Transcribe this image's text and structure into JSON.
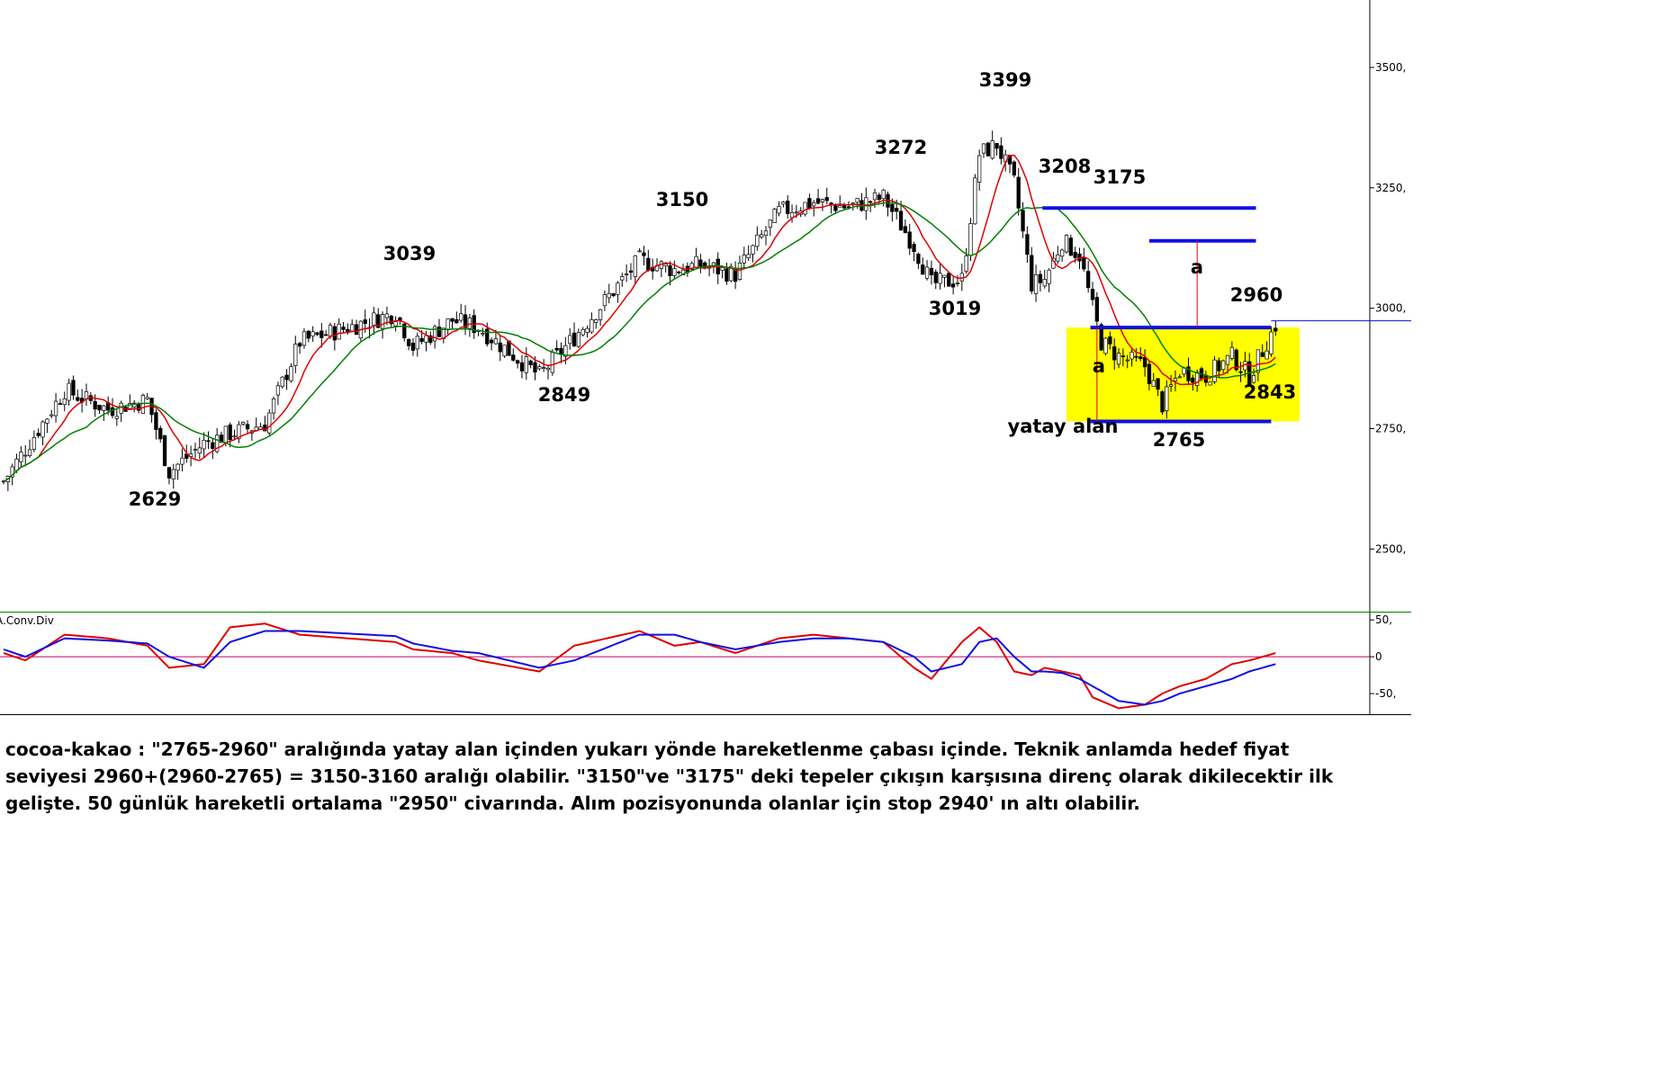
{
  "chart_data": [
    {
      "type": "candlestick",
      "ylim": [
        2370,
        3640
      ],
      "y_ticks": [
        2500,
        2750,
        3000,
        3250,
        3500
      ],
      "y_tick_labels": [
        "2500,",
        "2750,",
        "3000,",
        "3250,",
        "3500,"
      ],
      "colors": {
        "up": "#ffffff",
        "down": "#000000",
        "ma_fast": "#e00000",
        "ma_slow": "#008000",
        "resistance": "#1010e0",
        "box": "#ffff00",
        "last_price_line": "#1010e0"
      },
      "anchors": [
        {
          "i": 0,
          "v": 2640
        },
        {
          "i": 14,
          "v": 2830
        },
        {
          "i": 24,
          "v": 2790
        },
        {
          "i": 33,
          "v": 2810
        },
        {
          "i": 38,
          "v": 2660
        },
        {
          "i": 46,
          "v": 2720
        },
        {
          "i": 52,
          "v": 2740
        },
        {
          "i": 60,
          "v": 2760
        },
        {
          "i": 68,
          "v": 2930
        },
        {
          "i": 90,
          "v": 2990
        },
        {
          "i": 94,
          "v": 2920
        },
        {
          "i": 103,
          "v": 2975
        },
        {
          "i": 109,
          "v": 2960
        },
        {
          "i": 123,
          "v": 2860
        },
        {
          "i": 131,
          "v": 2940
        },
        {
          "i": 146,
          "v": 3100
        },
        {
          "i": 154,
          "v": 3080
        },
        {
          "i": 160,
          "v": 3090
        },
        {
          "i": 168,
          "v": 3070
        },
        {
          "i": 178,
          "v": 3200
        },
        {
          "i": 186,
          "v": 3220
        },
        {
          "i": 194,
          "v": 3210
        },
        {
          "i": 202,
          "v": 3230
        },
        {
          "i": 209,
          "v": 3130
        },
        {
          "i": 213,
          "v": 3050
        },
        {
          "i": 220,
          "v": 3060
        },
        {
          "i": 224,
          "v": 3320
        },
        {
          "i": 228,
          "v": 3340
        },
        {
          "i": 232,
          "v": 3260
        },
        {
          "i": 236,
          "v": 3050
        },
        {
          "i": 239,
          "v": 3060
        },
        {
          "i": 243,
          "v": 3140
        },
        {
          "i": 247,
          "v": 3110
        },
        {
          "i": 250,
          "v": 3000
        },
        {
          "i": 252,
          "v": 2930
        },
        {
          "i": 256,
          "v": 2900
        },
        {
          "i": 262,
          "v": 2880
        },
        {
          "i": 266,
          "v": 2800
        },
        {
          "i": 270,
          "v": 2870
        },
        {
          "i": 276,
          "v": 2860
        },
        {
          "i": 282,
          "v": 2900
        },
        {
          "i": 286,
          "v": 2860
        },
        {
          "i": 290,
          "v": 2930
        },
        {
          "i": 292,
          "v": 2965
        }
      ],
      "bars": 293,
      "overbar_labels": [
        {
          "text": "2629",
          "value": 2629,
          "bar": 36
        },
        {
          "text": "3039",
          "value": 3039,
          "bar": 92
        },
        {
          "text": "2849",
          "value": 2849,
          "bar": 127
        },
        {
          "text": "3150",
          "value": 3150,
          "bar": 153
        },
        {
          "text": "3272",
          "value": 3272,
          "bar": 203
        },
        {
          "text": "3399",
          "value": 3399,
          "bar": 226
        },
        {
          "text": "3019",
          "value": 3019,
          "bar": 215
        },
        {
          "text": "3208",
          "value": 3208,
          "bar": 239
        },
        {
          "text": "3175",
          "value": 3175,
          "bar": 251
        },
        {
          "text": "2960",
          "value": 2960,
          "bar": 284
        },
        {
          "text": "2843",
          "value": 2843,
          "bar": 287
        },
        {
          "text": "2765",
          "value": 2765,
          "bar": 271
        }
      ],
      "annotations": {
        "box_label": "yatay alan",
        "measure_label_left": "a",
        "measure_label_right": "a"
      },
      "horizontal_box": {
        "low": 2765,
        "high": 2960
      },
      "resistance_levels": [
        3208,
        3140
      ]
    },
    {
      "type": "line",
      "title": "A.Conv.Div",
      "ylim": [
        -78,
        60
      ],
      "y_ticks": [
        50,
        0,
        -50
      ],
      "y_tick_labels": [
        "50,",
        "0",
        "-50,"
      ],
      "series": [
        {
          "color": "#e00000",
          "anchors": [
            [
              0,
              5
            ],
            [
              5,
              -5
            ],
            [
              14,
              30
            ],
            [
              24,
              25
            ],
            [
              33,
              15
            ],
            [
              38,
              -15
            ],
            [
              46,
              -10
            ],
            [
              52,
              40
            ],
            [
              60,
              45
            ],
            [
              68,
              30
            ],
            [
              90,
              20
            ],
            [
              94,
              10
            ],
            [
              103,
              5
            ],
            [
              109,
              -5
            ],
            [
              123,
              -20
            ],
            [
              131,
              15
            ],
            [
              146,
              35
            ],
            [
              154,
              15
            ],
            [
              160,
              20
            ],
            [
              168,
              5
            ],
            [
              178,
              25
            ],
            [
              186,
              30
            ],
            [
              194,
              25
            ],
            [
              202,
              20
            ],
            [
              209,
              -15
            ],
            [
              213,
              -30
            ],
            [
              220,
              20
            ],
            [
              224,
              40
            ],
            [
              228,
              20
            ],
            [
              232,
              -20
            ],
            [
              236,
              -25
            ],
            [
              239,
              -15
            ],
            [
              243,
              -20
            ],
            [
              247,
              -25
            ],
            [
              250,
              -55
            ],
            [
              256,
              -70
            ],
            [
              262,
              -65
            ],
            [
              266,
              -50
            ],
            [
              270,
              -40
            ],
            [
              276,
              -30
            ],
            [
              282,
              -10
            ],
            [
              286,
              -5
            ],
            [
              292,
              5
            ]
          ]
        },
        {
          "color": "#1010e0",
          "anchors": [
            [
              0,
              10
            ],
            [
              5,
              0
            ],
            [
              14,
              25
            ],
            [
              24,
              22
            ],
            [
              33,
              18
            ],
            [
              38,
              0
            ],
            [
              46,
              -15
            ],
            [
              52,
              20
            ],
            [
              60,
              35
            ],
            [
              68,
              35
            ],
            [
              90,
              28
            ],
            [
              94,
              18
            ],
            [
              103,
              8
            ],
            [
              109,
              5
            ],
            [
              123,
              -15
            ],
            [
              131,
              -5
            ],
            [
              146,
              30
            ],
            [
              154,
              30
            ],
            [
              160,
              20
            ],
            [
              168,
              10
            ],
            [
              178,
              20
            ],
            [
              186,
              25
            ],
            [
              194,
              25
            ],
            [
              202,
              20
            ],
            [
              209,
              0
            ],
            [
              213,
              -20
            ],
            [
              220,
              -10
            ],
            [
              224,
              20
            ],
            [
              228,
              25
            ],
            [
              232,
              0
            ],
            [
              236,
              -20
            ],
            [
              239,
              -20
            ],
            [
              243,
              -22
            ],
            [
              247,
              -30
            ],
            [
              250,
              -40
            ],
            [
              256,
              -60
            ],
            [
              262,
              -65
            ],
            [
              266,
              -60
            ],
            [
              270,
              -50
            ],
            [
              276,
              -40
            ],
            [
              282,
              -30
            ],
            [
              286,
              -20
            ],
            [
              292,
              -10
            ]
          ]
        }
      ]
    }
  ],
  "commentary": "cocoa-kakao : \"2765-2960\" aralığında yatay alan içinden yukarı yönde hareketlenme çabası içinde. Teknik anlamda hedef fiyat seviyesi 2960+(2960-2765) = 3150-3160 aralığı olabilir. \"3150\"ve \"3175\" deki tepeler çıkışın karşısına direnç olarak dikilecektir ilk gelişte. 50 günlük hareketli ortalama \"2950\" civarında. Alım pozisyonunda olanlar için stop 2940' ın altı olabilir."
}
